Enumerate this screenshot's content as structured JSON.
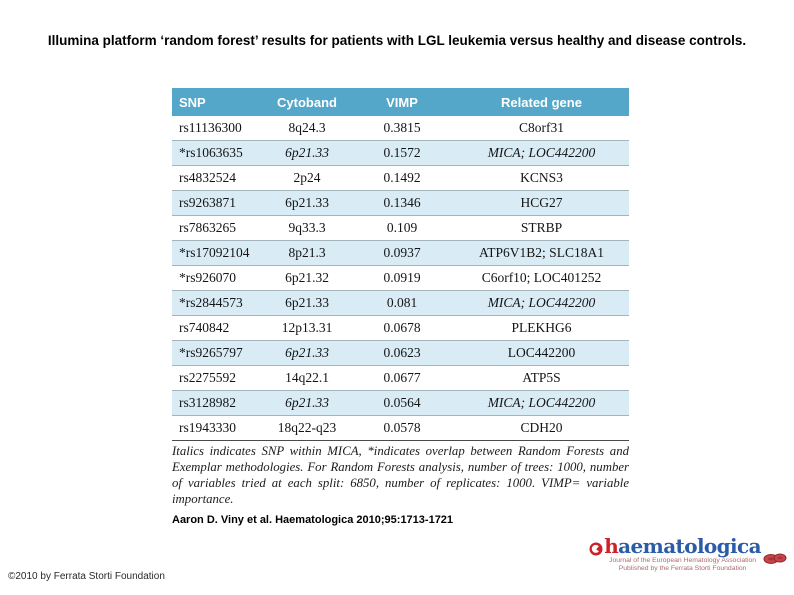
{
  "title": "Illumina platform ‘random forest’ results for patients with LGL leukemia versus healthy and disease controls.",
  "table": {
    "headers": [
      "SNP",
      "Cytoband",
      "VIMP",
      "Related gene"
    ],
    "rows": [
      {
        "snp": "rs11136300",
        "cytoband": "8q24.3",
        "vimp": "0.3815",
        "gene": "C8orf31",
        "cyto_italic": false,
        "gene_italic": false
      },
      {
        "snp": "*rs1063635",
        "cytoband": "6p21.33",
        "vimp": "0.1572",
        "gene": "MICA; LOC442200",
        "cyto_italic": true,
        "gene_italic": true
      },
      {
        "snp": "rs4832524",
        "cytoband": "2p24",
        "vimp": "0.1492",
        "gene": "KCNS3",
        "cyto_italic": false,
        "gene_italic": false
      },
      {
        "snp": "rs9263871",
        "cytoband": "6p21.33",
        "vimp": "0.1346",
        "gene": "HCG27",
        "cyto_italic": false,
        "gene_italic": false
      },
      {
        "snp": "rs7863265",
        "cytoband": "9q33.3",
        "vimp": "0.109",
        "gene": "STRBP",
        "cyto_italic": false,
        "gene_italic": false
      },
      {
        "snp": "*rs17092104",
        "cytoband": "8p21.3",
        "vimp": "0.0937",
        "gene": "ATP6V1B2; SLC18A1",
        "cyto_italic": false,
        "gene_italic": false
      },
      {
        "snp": "*rs926070",
        "cytoband": "6p21.32",
        "vimp": "0.0919",
        "gene": "C6orf10; LOC401252",
        "cyto_italic": false,
        "gene_italic": false
      },
      {
        "snp": "*rs2844573",
        "cytoband": "6p21.33",
        "vimp": "0.081",
        "gene": "MICA; LOC442200",
        "cyto_italic": false,
        "gene_italic": true
      },
      {
        "snp": "rs740842",
        "cytoband": "12p13.31",
        "vimp": "0.0678",
        "gene": "PLEKHG6",
        "cyto_italic": false,
        "gene_italic": false
      },
      {
        "snp": "*rs9265797",
        "cytoband": "6p21.33",
        "vimp": "0.0623",
        "gene": "LOC442200",
        "cyto_italic": true,
        "gene_italic": false
      },
      {
        "snp": "rs2275592",
        "cytoband": "14q22.1",
        "vimp": "0.0677",
        "gene": "ATP5S",
        "cyto_italic": false,
        "gene_italic": false
      },
      {
        "snp": "rs3128982",
        "cytoband": "6p21.33",
        "vimp": "0.0564",
        "gene": "MICA; LOC442200",
        "cyto_italic": true,
        "gene_italic": true
      },
      {
        "snp": "rs1943330",
        "cytoband": "18q22-q23",
        "vimp": "0.0578",
        "gene": "CDH20",
        "cyto_italic": false,
        "gene_italic": false
      }
    ],
    "footnote": "Italics indicates SNP within MICA, *indicates overlap between Random Forests and Exemplar methodologies. For Random Forests analysis, number of trees: 1000, number of variables tried at each split: 6850, number of replicates: 1000. VIMP= variable importance."
  },
  "citation": "Aaron D. Viny et al. Haematologica 2010;95:1713-1721",
  "copyright": "©2010 by Ferrata Storti Foundation",
  "logo": {
    "brand_first_letter": "h",
    "brand_rest": "aematologica",
    "tagline_line1": "Journal of the European Hematology Association",
    "tagline_line2": "Published by the Ferrata Storti Foundation"
  },
  "colors": {
    "header_bg": "#54a7c9",
    "stripe_bg": "#d9ecf6",
    "brand_red": "#cc2129",
    "brand_blue": "#2b5ca8"
  }
}
